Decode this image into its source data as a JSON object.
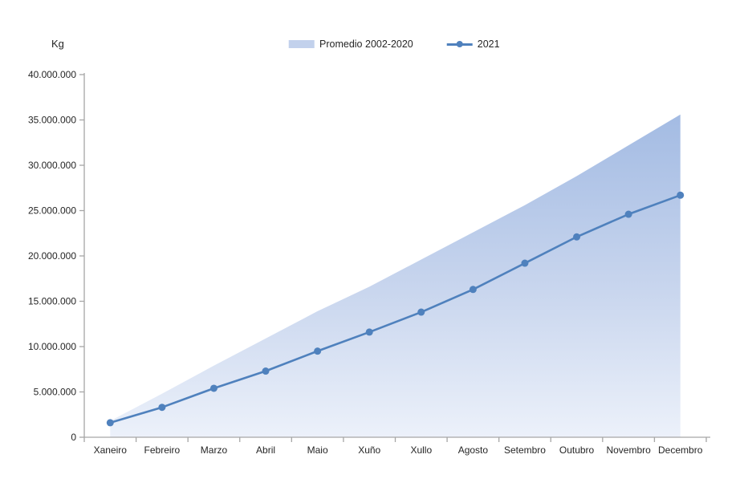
{
  "chart_data": {
    "type": "line+area",
    "title": "",
    "ylabel": "Kg",
    "xlabel": "",
    "categories": [
      "Xaneiro",
      "Febreiro",
      "Marzo",
      "Abril",
      "Maio",
      "Xuño",
      "Xullo",
      "Agosto",
      "Setembro",
      "Outubro",
      "Novembro",
      "Decembro"
    ],
    "series": [
      {
        "name": "Promedio 2002-2020",
        "type": "area",
        "color_top": "#a3bbe3",
        "color_mid": "#c9d6ee",
        "color_bottom": "#ecf1fa",
        "legend_swatch_color": "#c2d1ec",
        "values": [
          1800000,
          4800000,
          7900000,
          10900000,
          13900000,
          16600000,
          19600000,
          22600000,
          25600000,
          28800000,
          32200000,
          35600000
        ]
      },
      {
        "name": "2021",
        "type": "line",
        "color": "#4f81bd",
        "values": [
          1600000,
          3300000,
          5400000,
          7300000,
          9500000,
          11600000,
          13800000,
          16300000,
          19200000,
          22100000,
          24600000,
          26700000
        ]
      }
    ],
    "ylim": [
      0,
      40000000
    ],
    "yticks": {
      "values": [
        0,
        5000000,
        10000000,
        15000000,
        20000000,
        25000000,
        30000000,
        35000000,
        40000000
      ],
      "labels": [
        "0",
        "5.000.000",
        "10.000.000",
        "15.000.000",
        "20.000.000",
        "25.000.000",
        "30.000.000",
        "35.000.000",
        "40.000.000"
      ]
    },
    "grid": false,
    "legend_position": "top-center",
    "axis_color": "#a6a6a6",
    "text_color": "#262626"
  }
}
